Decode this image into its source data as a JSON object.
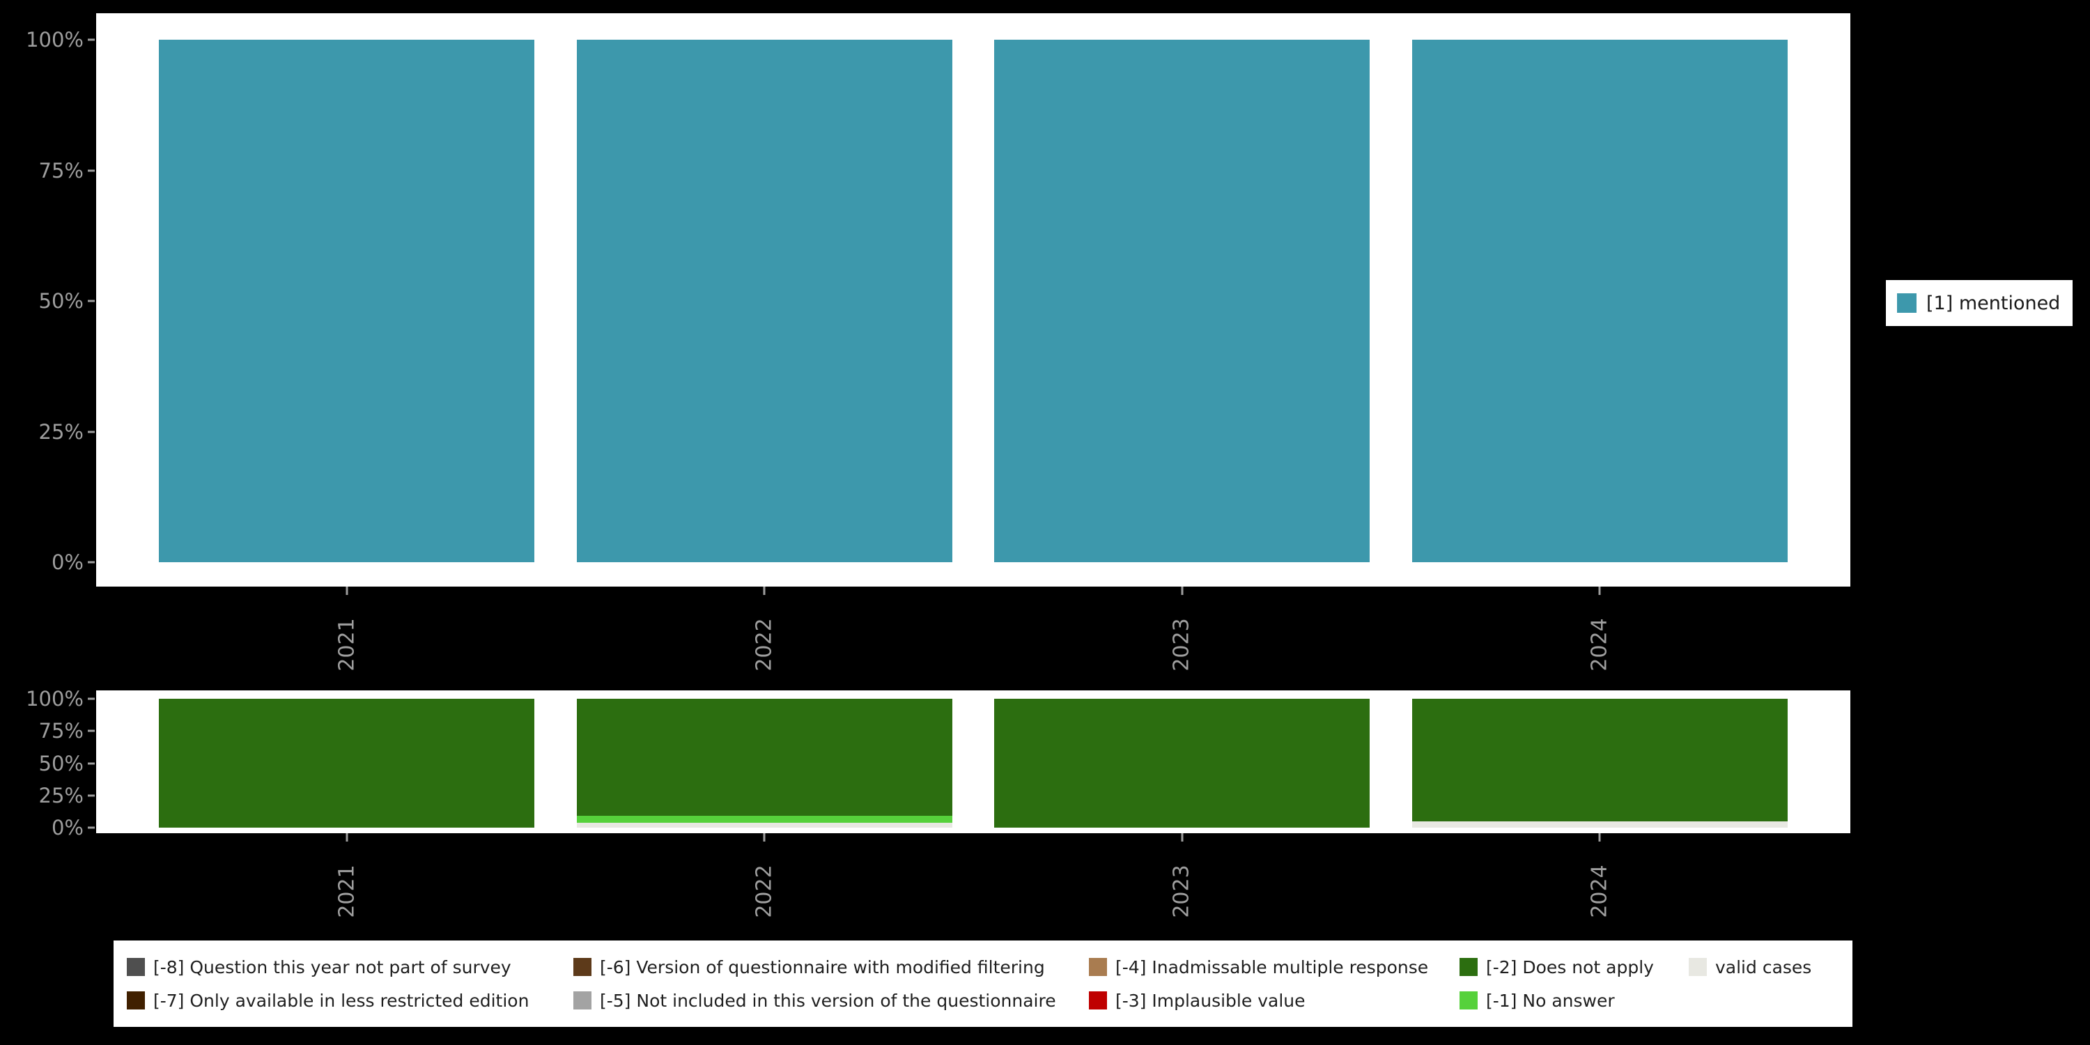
{
  "figure": {
    "background_color": "#000000",
    "panel_background_color": "#ffffff",
    "axis_text_color": "#9e9e9e"
  },
  "axis": {
    "years": [
      "2021",
      "2022",
      "2023",
      "2024"
    ],
    "percent_ticks": [
      "0%",
      "25%",
      "50%",
      "75%",
      "100%"
    ]
  },
  "legend_right": {
    "items": [
      {
        "label": "[1] mentioned",
        "color": "#3d98ac"
      }
    ]
  },
  "legend_bottom": {
    "columns": [
      {
        "items": [
          {
            "label": "[-8] Question this year not part of survey",
            "color": "#4f4f4f"
          },
          {
            "label": "[-7] Only available in less restricted edition",
            "color": "#402000"
          }
        ]
      },
      {
        "items": [
          {
            "label": "[-6] Version of questionnaire with modified filtering",
            "color": "#5d3a1a"
          },
          {
            "label": "[-5] Not included in this version of the questionnaire",
            "color": "#a3a3a3"
          }
        ]
      },
      {
        "items": [
          {
            "label": "[-4] Inadmissable multiple response",
            "color": "#a97c50"
          },
          {
            "label": "[-3] Implausible value",
            "color": "#bf0000"
          }
        ]
      },
      {
        "items": [
          {
            "label": "[-2] Does not apply",
            "color": "#2c6e10"
          },
          {
            "label": "[-1] No answer",
            "color": "#56d13b"
          }
        ]
      },
      {
        "items": [
          {
            "label": "valid cases",
            "color": "#e8e8e2"
          }
        ]
      }
    ]
  },
  "chart_data": [
    {
      "type": "bar",
      "panel": "top",
      "stacked": true,
      "title": "",
      "categories": [
        "2021",
        "2022",
        "2023",
        "2024"
      ],
      "series": [
        {
          "name": "[1] mentioned",
          "color": "#3d98ac",
          "values": [
            100,
            100,
            100,
            100
          ]
        }
      ],
      "xlabel": "",
      "ylabel": "",
      "ylim": [
        0,
        100
      ],
      "yticks": [
        "0%",
        "25%",
        "50%",
        "75%",
        "100%"
      ],
      "grid": false,
      "legend_position": "right"
    },
    {
      "type": "bar",
      "panel": "bottom",
      "stacked": true,
      "title": "",
      "categories": [
        "2021",
        "2022",
        "2023",
        "2024"
      ],
      "series": [
        {
          "name": "valid cases",
          "color": "#e8e8e2",
          "values": [
            0,
            4,
            0,
            5
          ]
        },
        {
          "name": "[-1] No answer",
          "color": "#56d13b",
          "values": [
            0,
            5,
            0,
            0
          ]
        },
        {
          "name": "[-2] Does not apply",
          "color": "#2c6e10",
          "values": [
            100,
            91,
            100,
            95
          ]
        }
      ],
      "xlabel": "",
      "ylabel": "",
      "ylim": [
        0,
        100
      ],
      "yticks": [
        "0%",
        "25%",
        "50%",
        "75%",
        "100%"
      ],
      "grid": false,
      "legend_position": "bottom"
    }
  ]
}
